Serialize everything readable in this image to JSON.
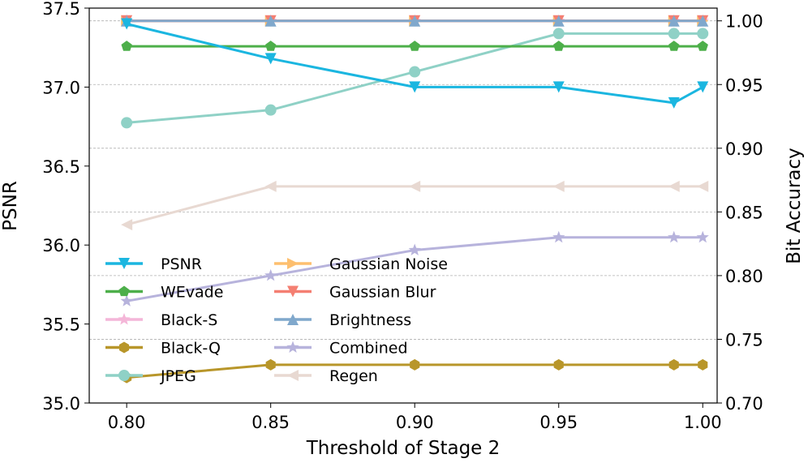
{
  "chart_data": {
    "type": "line",
    "xlabel": "Threshold of Stage 2",
    "ylabel_left": "PSNR",
    "ylabel_right": "Bit Accuracy",
    "x": [
      0.8,
      0.85,
      0.9,
      0.95,
      0.99,
      1.0
    ],
    "x_ticks": [
      "0.80",
      "0.85",
      "0.90",
      "0.95",
      "1.00"
    ],
    "x_tick_values": [
      0.8,
      0.85,
      0.9,
      0.95,
      1.0
    ],
    "xlim": [
      0.787,
      1.005
    ],
    "ylim_left": [
      35.0,
      37.5
    ],
    "ylim_right": [
      0.7,
      1.01
    ],
    "y_left_ticks": [
      "35.0",
      "35.5",
      "36.0",
      "36.5",
      "37.0",
      "37.5"
    ],
    "y_left_tick_values": [
      35.0,
      35.5,
      36.0,
      36.5,
      37.0,
      37.5
    ],
    "y_right_ticks": [
      "0.70",
      "0.75",
      "0.80",
      "0.85",
      "0.90",
      "0.95",
      "1.00"
    ],
    "y_right_tick_values": [
      0.7,
      0.75,
      0.8,
      0.85,
      0.9,
      0.95,
      1.0
    ],
    "grid": "horizontal-dashed",
    "legend": "lower-left",
    "series": [
      {
        "name": "PSNR",
        "axis": "left",
        "color": "#1bb6e0",
        "marker": "tri-down",
        "values": [
          37.4,
          37.18,
          37.0,
          37.0,
          36.9,
          37.0
        ]
      },
      {
        "name": "WEvade",
        "axis": "right",
        "color": "#4daf4a",
        "marker": "pentagon",
        "values": [
          0.98,
          0.98,
          0.98,
          0.98,
          0.98,
          0.98
        ]
      },
      {
        "name": "Black-S",
        "axis": "right",
        "color": "#f4b6d8",
        "marker": "star",
        "values": [
          1.0,
          1.0,
          1.0,
          1.0,
          1.0,
          1.0
        ]
      },
      {
        "name": "Black-Q",
        "axis": "right",
        "color": "#b8962a",
        "marker": "hexagon",
        "values": [
          0.72,
          0.73,
          0.73,
          0.73,
          0.73,
          0.73
        ]
      },
      {
        "name": "JPEG",
        "axis": "right",
        "color": "#8fd1c6",
        "marker": "circle",
        "values": [
          0.92,
          0.93,
          0.96,
          0.99,
          0.99,
          0.99
        ]
      },
      {
        "name": "Gaussian Noise",
        "axis": "right",
        "color": "#fdbf6f",
        "marker": "tri-right",
        "values": [
          1.0,
          1.0,
          1.0,
          1.0,
          1.0,
          1.0
        ]
      },
      {
        "name": "Gaussian Blur",
        "axis": "right",
        "color": "#f47f72",
        "marker": "tri-down",
        "values": [
          1.0,
          1.0,
          1.0,
          1.0,
          1.0,
          1.0
        ]
      },
      {
        "name": "Brightness",
        "axis": "right",
        "color": "#80a8cc",
        "marker": "tri-up",
        "values": [
          1.0,
          1.0,
          1.0,
          1.0,
          1.0,
          1.0
        ]
      },
      {
        "name": "Combined",
        "axis": "right",
        "color": "#b7b3dc",
        "marker": "star",
        "values": [
          0.78,
          0.8,
          0.82,
          0.83,
          0.83,
          0.83
        ]
      },
      {
        "name": "Regen",
        "axis": "right",
        "color": "#e8d9d2",
        "marker": "tri-left",
        "values": [
          0.84,
          0.87,
          0.87,
          0.87,
          0.87,
          0.87
        ]
      }
    ],
    "draw_order": [
      "JPEG",
      "Regen",
      "Combined",
      "Black-Q",
      "WEvade",
      "Black-S",
      "Gaussian Noise",
      "Gaussian Blur",
      "Brightness",
      "PSNR"
    ],
    "legend_columns": [
      [
        "PSNR",
        "WEvade",
        "Black-S",
        "Black-Q",
        "JPEG"
      ],
      [
        "Gaussian Noise",
        "Gaussian Blur",
        "Brightness",
        "Combined",
        "Regen"
      ]
    ]
  }
}
